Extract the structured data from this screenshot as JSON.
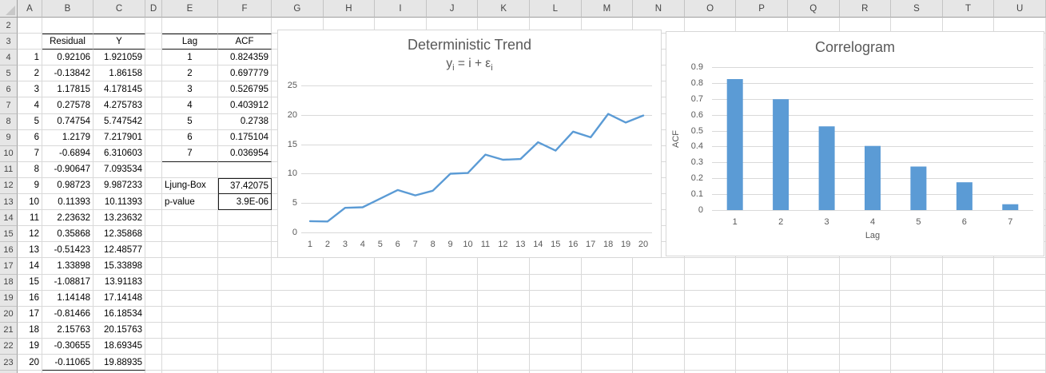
{
  "sheet": {
    "columns": [
      "A",
      "B",
      "C",
      "D",
      "E",
      "F",
      "G",
      "H",
      "I",
      "J",
      "K",
      "L",
      "M",
      "N",
      "O",
      "P",
      "Q",
      "R",
      "S",
      "T",
      "U"
    ],
    "rows": [
      "2",
      "3",
      "4",
      "5",
      "6",
      "7",
      "8",
      "9",
      "10",
      "11",
      "12",
      "13",
      "14",
      "15",
      "16",
      "17",
      "18",
      "19",
      "20",
      "21",
      "22",
      "23"
    ],
    "table1": {
      "headers": [
        "Residual",
        "Y"
      ],
      "index": [
        "1",
        "2",
        "3",
        "4",
        "5",
        "6",
        "7",
        "8",
        "9",
        "10",
        "11",
        "12",
        "13",
        "14",
        "15",
        "16",
        "17",
        "18",
        "19",
        "20"
      ],
      "residual": [
        "0.92106",
        "-0.13842",
        "1.17815",
        "0.27578",
        "0.74754",
        "1.2179",
        "-0.6894",
        "-0.90647",
        "0.98723",
        "0.11393",
        "2.23632",
        "0.35868",
        "-0.51423",
        "1.33898",
        "-1.08817",
        "1.14148",
        "-0.81466",
        "2.15763",
        "-0.30655",
        "-0.11065"
      ],
      "y": [
        "1.921059",
        "1.86158",
        "4.178145",
        "4.275783",
        "5.747542",
        "7.217901",
        "6.310603",
        "7.093534",
        "9.987233",
        "10.11393",
        "13.23632",
        "12.35868",
        "12.48577",
        "15.33898",
        "13.91183",
        "17.14148",
        "16.18534",
        "20.15763",
        "18.69345",
        "19.88935"
      ]
    },
    "table2": {
      "headers": [
        "Lag",
        "ACF"
      ],
      "lag": [
        "1",
        "2",
        "3",
        "4",
        "5",
        "6",
        "7"
      ],
      "acf": [
        "0.824359",
        "0.697779",
        "0.526795",
        "0.403912",
        "0.2738",
        "0.175104",
        "0.036954"
      ]
    },
    "stats": {
      "ljung_box_label": "Ljung-Box",
      "ljung_box_value": "37.42075",
      "p_value_label": "p-value",
      "p_value": "3.9E-06"
    }
  },
  "chart_data": [
    {
      "type": "line",
      "title": "Deterministic Trend",
      "subtitle_parts": [
        {
          "t": "y"
        },
        {
          "t": "i",
          "sub": true
        },
        {
          "t": " = i + ε"
        },
        {
          "t": "i",
          "sub": true
        }
      ],
      "x": [
        "1",
        "2",
        "3",
        "4",
        "5",
        "6",
        "7",
        "8",
        "9",
        "10",
        "11",
        "12",
        "13",
        "14",
        "15",
        "16",
        "17",
        "18",
        "19",
        "20"
      ],
      "values": [
        1.921059,
        1.86158,
        4.178145,
        4.275783,
        5.747542,
        7.217901,
        6.310603,
        7.093534,
        9.987233,
        10.11393,
        13.23632,
        12.35868,
        12.48577,
        15.33898,
        13.91183,
        17.14148,
        16.18534,
        20.15763,
        18.69345,
        19.88935
      ],
      "xlabel": "",
      "ylabel": "",
      "ylim": [
        0,
        25
      ],
      "yticks": [
        "0",
        "5",
        "10",
        "15",
        "20",
        "25"
      ],
      "grid": true,
      "legend": false,
      "line_color": "#5B9BD5",
      "gridline_color": "#D9D9D9",
      "text_color": "#595959"
    },
    {
      "type": "bar",
      "title": "Correlogram",
      "categories": [
        "1",
        "2",
        "3",
        "4",
        "5",
        "6",
        "7"
      ],
      "values": [
        0.824359,
        0.697779,
        0.526795,
        0.403912,
        0.2738,
        0.175104,
        0.036954
      ],
      "xlabel": "Lag",
      "ylabel": "ACF",
      "ylim": [
        0,
        0.9
      ],
      "yticks": [
        "0",
        "0.1",
        "0.2",
        "0.3",
        "0.4",
        "0.5",
        "0.6",
        "0.7",
        "0.8",
        "0.9"
      ],
      "grid": true,
      "legend": false,
      "bar_color": "#5B9BD5",
      "gridline_color": "#D9D9D9",
      "text_color": "#595959"
    }
  ]
}
